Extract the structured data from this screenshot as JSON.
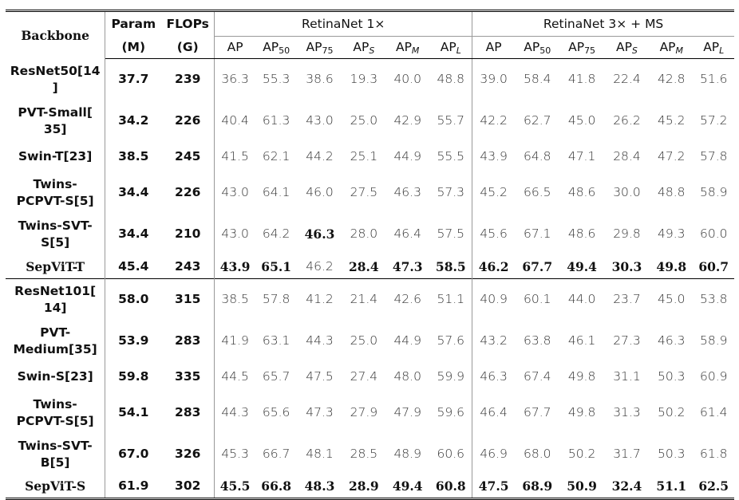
{
  "header": {
    "backbone": "Backbone",
    "param": "Param",
    "param_unit": "(M)",
    "flops": "FLOPs",
    "flops_unit": "(G)",
    "group1": "RetinaNet 1×",
    "group2": "RetinaNet 3× + MS",
    "metrics": [
      {
        "base": "AP",
        "sub": ""
      },
      {
        "base": "AP",
        "sub": "50"
      },
      {
        "base": "AP",
        "sub": "75"
      },
      {
        "base": "AP",
        "sub": "S"
      },
      {
        "base": "AP",
        "sub": "M"
      },
      {
        "base": "AP",
        "sub": "L"
      }
    ]
  },
  "rows": [
    {
      "name": [
        "ResNet50[14",
        "]"
      ],
      "param": "37.7",
      "flops": "239",
      "v1": [
        "36.3",
        "55.3",
        "38.6",
        "19.3",
        "40.0",
        "48.8"
      ],
      "v2": [
        "39.0",
        "58.4",
        "41.8",
        "22.4",
        "42.8",
        "51.6"
      ]
    },
    {
      "name": [
        "PVT-Small[",
        "35]"
      ],
      "param": "34.2",
      "flops": "226",
      "v1": [
        "40.4",
        "61.3",
        "43.0",
        "25.0",
        "42.9",
        "55.7"
      ],
      "v2": [
        "42.2",
        "62.7",
        "45.0",
        "26.2",
        "45.2",
        "57.2"
      ]
    },
    {
      "name": [
        "Swin-T[23]"
      ],
      "param": "38.5",
      "flops": "245",
      "v1": [
        "41.5",
        "62.1",
        "44.2",
        "25.1",
        "44.9",
        "55.5"
      ],
      "v2": [
        "43.9",
        "64.8",
        "47.1",
        "28.4",
        "47.2",
        "57.8"
      ]
    },
    {
      "name": [
        "Twins-",
        "PCPVT-S[5]"
      ],
      "param": "34.4",
      "flops": "226",
      "v1": [
        "43.0",
        "64.1",
        "46.0",
        "27.5",
        "46.3",
        "57.3"
      ],
      "v2": [
        "45.2",
        "66.5",
        "48.6",
        "30.0",
        "48.8",
        "58.9"
      ]
    },
    {
      "name": [
        "Twins-SVT-",
        "S[5]"
      ],
      "param": "34.4",
      "flops": "210",
      "v1": [
        "43.0",
        "64.2",
        "46.3",
        "28.0",
        "46.4",
        "57.5"
      ],
      "v2": [
        "45.6",
        "67.1",
        "48.6",
        "29.8",
        "49.3",
        "60.0"
      ],
      "bold1": [
        2
      ]
    },
    {
      "name": [
        "SepViT-T"
      ],
      "ours": true,
      "param": "45.4",
      "flops": "243",
      "v1": [
        "43.9",
        "65.1",
        "46.2",
        "28.4",
        "47.3",
        "58.5"
      ],
      "v2": [
        "46.2",
        "67.7",
        "49.4",
        "30.3",
        "49.8",
        "60.7"
      ],
      "bold1": [
        0,
        1,
        3,
        4,
        5
      ],
      "bold2": [
        0,
        1,
        2,
        3,
        4,
        5
      ]
    },
    {
      "name": [
        "ResNet101[",
        "14]"
      ],
      "param": "58.0",
      "flops": "315",
      "v1": [
        "38.5",
        "57.8",
        "41.2",
        "21.4",
        "42.6",
        "51.1"
      ],
      "v2": [
        "40.9",
        "60.1",
        "44.0",
        "23.7",
        "45.0",
        "53.8"
      ]
    },
    {
      "name": [
        "PVT-",
        "Medium[35]"
      ],
      "param": "53.9",
      "flops": "283",
      "v1": [
        "41.9",
        "63.1",
        "44.3",
        "25.0",
        "44.9",
        "57.6"
      ],
      "v2": [
        "43.2",
        "63.8",
        "46.1",
        "27.3",
        "46.3",
        "58.9"
      ]
    },
    {
      "name": [
        "Swin-S[23]"
      ],
      "param": "59.8",
      "flops": "335",
      "v1": [
        "44.5",
        "65.7",
        "47.5",
        "27.4",
        "48.0",
        "59.9"
      ],
      "v2": [
        "46.3",
        "67.4",
        "49.8",
        "31.1",
        "50.3",
        "60.9"
      ]
    },
    {
      "name": [
        "Twins-",
        "PCPVT-S[5]"
      ],
      "param": "54.1",
      "flops": "283",
      "v1": [
        "44.3",
        "65.6",
        "47.3",
        "27.9",
        "47.9",
        "59.6"
      ],
      "v2": [
        "46.4",
        "67.7",
        "49.8",
        "31.3",
        "50.2",
        "61.4"
      ]
    },
    {
      "name": [
        "Twins-SVT-",
        "B[5]"
      ],
      "param": "67.0",
      "flops": "326",
      "v1": [
        "45.3",
        "66.7",
        "48.1",
        "28.5",
        "48.9",
        "60.6"
      ],
      "v2": [
        "46.9",
        "68.0",
        "50.2",
        "31.7",
        "50.3",
        "61.8"
      ]
    },
    {
      "name": [
        "SepViT-S"
      ],
      "ours": true,
      "param": "61.9",
      "flops": "302",
      "v1": [
        "45.5",
        "66.8",
        "48.3",
        "28.9",
        "49.4",
        "60.8"
      ],
      "v2": [
        "47.5",
        "68.9",
        "50.9",
        "32.4",
        "51.1",
        "62.5"
      ],
      "bold1": [
        0,
        1,
        2,
        3,
        4,
        5
      ],
      "bold2": [
        0,
        1,
        2,
        3,
        4,
        5
      ]
    }
  ]
}
